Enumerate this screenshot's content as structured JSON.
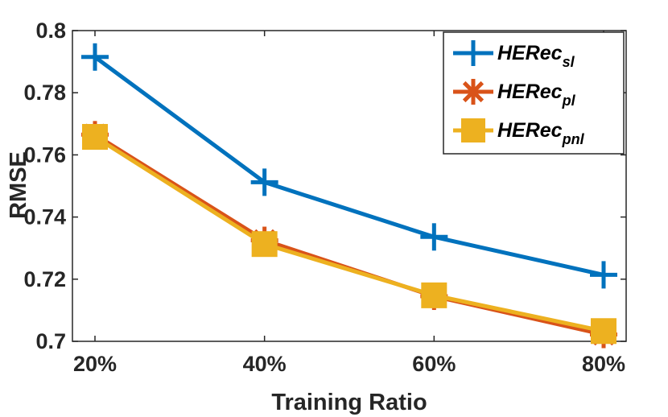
{
  "chart_data": {
    "type": "line",
    "x": [
      "20%",
      "40%",
      "60%",
      "80%"
    ],
    "xlabel": "Training Ratio",
    "ylabel": "RMSE",
    "ylim": [
      0.7,
      0.8
    ],
    "yticks": [
      "0.7",
      "0.72",
      "0.74",
      "0.76",
      "0.78",
      "0.8"
    ],
    "grid": false,
    "legend_position": "top-right",
    "series": [
      {
        "name": "HERec",
        "name_sub": "sl",
        "values": [
          0.7915,
          0.7512,
          0.7336,
          0.7214
        ],
        "color": "#0072BD",
        "marker": "plus"
      },
      {
        "name": "HERec",
        "name_sub": "pl",
        "values": [
          0.7665,
          0.7325,
          0.7145,
          0.7022
        ],
        "color": "#D95319",
        "marker": "asterisk"
      },
      {
        "name": "HERec",
        "name_sub": "pnl",
        "values": [
          0.7658,
          0.7313,
          0.7148,
          0.7033
        ],
        "color": "#EDB120",
        "marker": "square"
      }
    ]
  }
}
